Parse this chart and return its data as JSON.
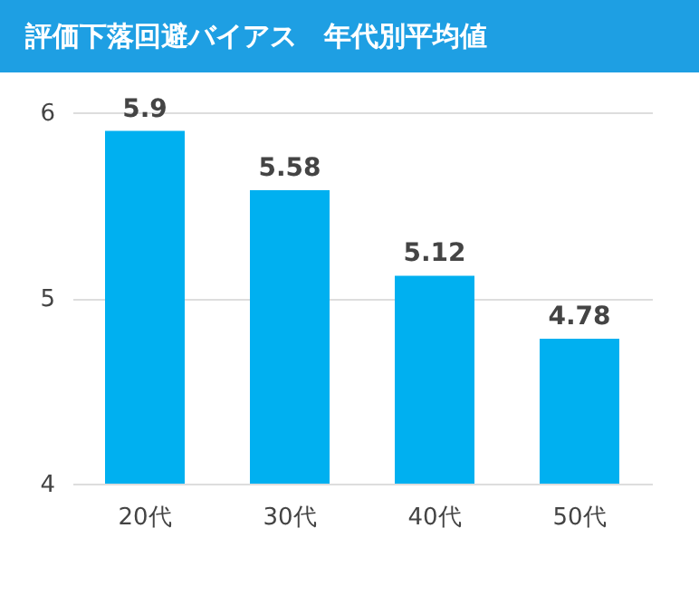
{
  "chart_data": {
    "type": "bar",
    "title": "評価下落回避バイアス　年代別平均値",
    "categories": [
      "20代",
      "30代",
      "40代",
      "50代"
    ],
    "values": [
      5.9,
      5.58,
      5.12,
      4.78
    ],
    "color": "#00b0f0",
    "ylim": [
      4,
      6
    ],
    "yticks": [
      4,
      5,
      6
    ],
    "grid": "y",
    "data_labels": true
  }
}
